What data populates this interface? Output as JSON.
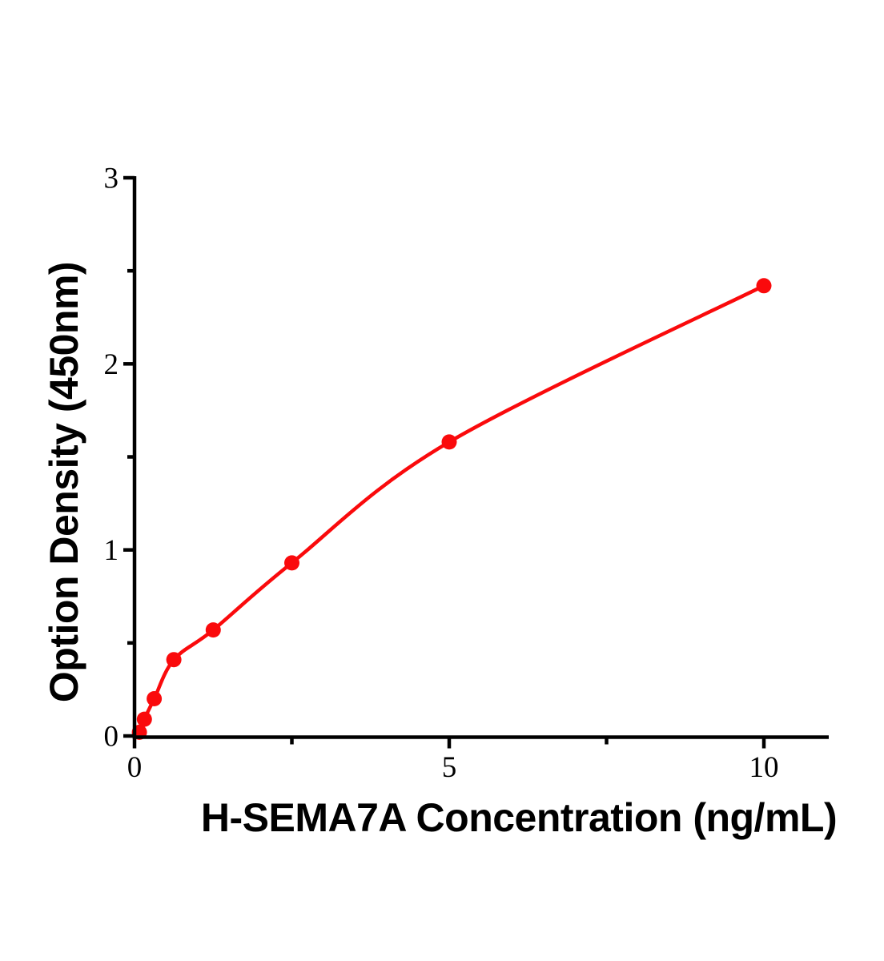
{
  "chart_data": {
    "type": "scatter",
    "title": "",
    "xlabel": "H-SEMA7A Concentration (ng/mL)",
    "ylabel": "Option Density (450nm)",
    "x": [
      0.078,
      0.156,
      0.313,
      0.625,
      1.25,
      2.5,
      5,
      10
    ],
    "y": [
      0.02,
      0.09,
      0.2,
      0.41,
      0.57,
      0.93,
      1.58,
      2.42
    ],
    "curve_starts_at_origin": true,
    "curve_style": "smooth-through-points",
    "xlim": [
      0,
      11
    ],
    "ylim": [
      0,
      3
    ],
    "x_major_ticks": [
      0,
      5,
      10
    ],
    "x_tick_labels": [
      "0",
      "5",
      "10"
    ],
    "x_minor_ticks": [
      2.5,
      7.5
    ],
    "y_major_ticks": [
      0,
      1,
      2,
      3
    ],
    "y_tick_labels": [
      "0",
      "1",
      "2",
      "3"
    ],
    "y_minor_ticks": [
      0.5,
      1.5,
      2.5
    ],
    "grid": false,
    "legend_position": null,
    "colors": {
      "curve": "#fa0a0c",
      "marker": "#fa0a0c",
      "axis": "#000000",
      "text": "#000000",
      "background": "#ffffff"
    }
  }
}
